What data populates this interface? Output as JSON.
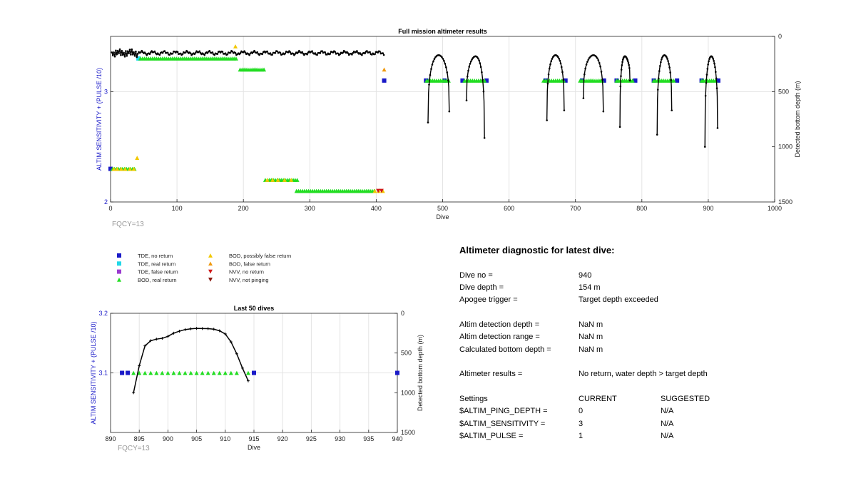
{
  "chart_data": [
    {
      "type": "scatter",
      "title": "Full mission altimeter results",
      "xlabel": "Dive",
      "ylabel_left": "ALTIM SENSITIVITY + (PULSE /10)",
      "ylabel_right": "Detected bottom depth (m)",
      "xlim": [
        0,
        1000
      ],
      "ylim_left": [
        2,
        3.5
      ],
      "ylim_right": [
        1500,
        0
      ],
      "right_axis_reversed": true,
      "xticks": [
        "0",
        "100",
        "200",
        "300",
        "400",
        "500",
        "600",
        "700",
        "800",
        "900",
        "1000"
      ],
      "yticks_left": [
        "2",
        "3"
      ],
      "yticks_right": [
        "0",
        "500",
        "1000",
        "1500"
      ],
      "grid": true,
      "note": "FQCY=13",
      "colors": {
        "tde_no_return": "#1a1ac8",
        "tde_real_return": "#22d8e8",
        "tde_false_return": "#9a3ad0",
        "bod_real_return": "#22dd22",
        "bod_possibly_false": "#f2c800",
        "bod_false_return": "#f09a10",
        "nvv": "#d01818",
        "nvv_not_pinging": "#8a1a10",
        "depth_line": "#000000",
        "axis_label": "#1a1ac8"
      },
      "series": [
        {
          "name": "TDE, no return",
          "marker": "square",
          "color": "#1a1ac8",
          "points": [
            [
              0,
              2.3
            ],
            [
              412,
              3.1
            ],
            [
              475,
              3.1
            ],
            [
              503,
              3.1
            ],
            [
              530,
              3.1
            ],
            [
              566,
              3.1
            ],
            [
              655,
              3.1
            ],
            [
              685,
              3.1
            ],
            [
              710,
              3.1
            ],
            [
              743,
              3.1
            ],
            [
              762,
              3.1
            ],
            [
              790,
              3.1
            ],
            [
              818,
              3.1
            ],
            [
              853,
              3.1
            ],
            [
              890,
              3.1
            ],
            [
              915,
              3.1
            ]
          ]
        },
        {
          "name": "TDE, real return",
          "marker": "square",
          "color": "#22d8e8",
          "points": [
            [
              42,
              3.3
            ]
          ]
        },
        {
          "name": "BOD, real return",
          "marker": "triangle",
          "color": "#22dd22",
          "runs": [
            [
              45,
              190,
              3.3
            ],
            [
              195,
              232,
              3.2
            ],
            [
              3,
              38,
              2.3
            ],
            [
              233,
              282,
              2.2
            ],
            [
              280,
              398,
              2.1
            ],
            [
              476,
              510,
              3.1
            ],
            [
              533,
              565,
              3.1
            ],
            [
              652,
              683,
              3.1
            ],
            [
              707,
              742,
              3.1
            ],
            [
              762,
              786,
              3.1
            ],
            [
              818,
              849,
              3.1
            ],
            [
              890,
              912,
              3.1
            ]
          ]
        },
        {
          "name": "BOD, possibly false return",
          "marker": "triangle",
          "color": "#f2c800",
          "points": [
            [
              5,
              2.3
            ],
            [
              10,
              2.3
            ],
            [
              16,
              2.3
            ],
            [
              22,
              2.3
            ],
            [
              29,
              2.3
            ],
            [
              35,
              2.3
            ],
            [
              40,
              2.4
            ],
            [
              236,
              2.2
            ],
            [
              244,
              2.2
            ],
            [
              252,
              2.2
            ],
            [
              262,
              2.2
            ],
            [
              272,
              2.2
            ],
            [
              398,
              2.1
            ],
            [
              404,
              2.1
            ],
            [
              410,
              2.1
            ],
            [
              188,
              3.41
            ]
          ]
        },
        {
          "name": "BOD, false return",
          "marker": "triangle",
          "color": "#f09a10",
          "points": [
            [
              412,
              3.2
            ]
          ]
        },
        {
          "name": "NVV, no return",
          "marker": "triangle-down",
          "color": "#d01818",
          "points": [
            [
              403,
              2.1
            ],
            [
              408,
              2.1
            ]
          ]
        },
        {
          "name": "Detected bottom depth",
          "axis": "right",
          "color": "#000000",
          "surface": {
            "x_start": 2,
            "x_end": 412,
            "depth_mean": 150,
            "note": "near-constant bottom depth approx 110-180 m"
          },
          "arches": [
            {
              "x_start": 478,
              "x_end": 510,
              "depth_start": 780,
              "depth_end": 680,
              "depth_min": 170
            },
            {
              "x_start": 536,
              "x_end": 563,
              "depth_start": 580,
              "depth_end": 920,
              "depth_min": 180
            },
            {
              "x_start": 657,
              "x_end": 683,
              "depth_start": 760,
              "depth_end": 670,
              "depth_min": 170
            },
            {
              "x_start": 712,
              "x_end": 742,
              "depth_start": 560,
              "depth_end": 680,
              "depth_min": 170
            },
            {
              "x_start": 767,
              "x_end": 782,
              "depth_start": 820,
              "depth_end": 400,
              "depth_min": 180
            },
            {
              "x_start": 823,
              "x_end": 845,
              "depth_start": 890,
              "depth_end": 670,
              "depth_min": 170
            },
            {
              "x_start": 895,
              "x_end": 914,
              "depth_start": 1000,
              "depth_end": 830,
              "depth_min": 180
            }
          ]
        }
      ]
    },
    {
      "type": "scatter",
      "title": "Last 50 dives",
      "xlabel": "Dive",
      "ylabel_left": "ALTIM SENSITIVITY + (PULSE /10)",
      "ylabel_right": "Detected bottom depth (m)",
      "xlim": [
        890,
        940
      ],
      "ylim_left": [
        3.0,
        3.2
      ],
      "ylim_right": [
        1500,
        0
      ],
      "right_axis_reversed": true,
      "xticks": [
        "890",
        "895",
        "900",
        "905",
        "910",
        "915",
        "920",
        "925",
        "930",
        "935",
        "940"
      ],
      "yticks_left": [
        "3.1",
        "3.2"
      ],
      "yticks_right": [
        "0",
        "500",
        "1000",
        "1500"
      ],
      "grid": true,
      "note": "FQCY=13",
      "series": [
        {
          "name": "TDE, no return",
          "marker": "square",
          "color": "#1a1ac8",
          "points": [
            [
              892,
              3.1
            ],
            [
              893,
              3.1
            ],
            [
              915,
              3.1
            ],
            [
              940,
              3.1
            ]
          ]
        },
        {
          "name": "BOD, real return",
          "marker": "triangle",
          "color": "#22dd22",
          "points": [
            [
              894,
              3.1
            ],
            [
              895,
              3.1
            ],
            [
              896,
              3.1
            ],
            [
              897,
              3.1
            ],
            [
              898,
              3.1
            ],
            [
              899,
              3.1
            ],
            [
              900,
              3.1
            ],
            [
              901,
              3.1
            ],
            [
              902,
              3.1
            ],
            [
              903,
              3.1
            ],
            [
              904,
              3.1
            ],
            [
              905,
              3.1
            ],
            [
              906,
              3.1
            ],
            [
              907,
              3.1
            ],
            [
              908,
              3.1
            ],
            [
              909,
              3.1
            ],
            [
              910,
              3.1
            ],
            [
              911,
              3.1
            ],
            [
              912,
              3.1
            ],
            [
              914,
              3.1
            ]
          ]
        },
        {
          "name": "Detected bottom depth",
          "axis": "right",
          "color": "#000000",
          "x": [
            894,
            895,
            896,
            897,
            898,
            899,
            900,
            901,
            902,
            903,
            904,
            905,
            906,
            907,
            908,
            909,
            910,
            911,
            912,
            913,
            914
          ],
          "y": [
            1000,
            660,
            410,
            345,
            325,
            315,
            290,
            250,
            225,
            205,
            195,
            190,
            192,
            193,
            200,
            220,
            260,
            360,
            510,
            690,
            850
          ]
        }
      ]
    }
  ],
  "legend": {
    "col1": [
      {
        "label": "TDE, no return",
        "marker": "square",
        "color": "#1a1ac8"
      },
      {
        "label": "TDE, real return",
        "marker": "square",
        "color": "#22d8e8"
      },
      {
        "label": "TDE, false return",
        "marker": "square",
        "color": "#9a3ad0"
      },
      {
        "label": "BOD, real return",
        "marker": "triangle",
        "color": "#22dd22"
      }
    ],
    "col2": [
      {
        "label": "BOD, possibly false return",
        "marker": "triangle",
        "color": "#f2c800"
      },
      {
        "label": "BOD, false return",
        "marker": "triangle",
        "color": "#f09a10"
      },
      {
        "label": "NVV, no return",
        "marker": "triangle-down",
        "color": "#d01818"
      },
      {
        "label": "NVV, not pinging",
        "marker": "triangle-down",
        "color": "#8a1a10"
      }
    ]
  },
  "diagnostic": {
    "title": "Altimeter diagnostic for latest dive:",
    "rows": [
      {
        "label": "Dive no =",
        "value": "940"
      },
      {
        "label": "Dive depth =",
        "value": "154 m"
      },
      {
        "label": "Apogee trigger =",
        "value": "Target depth exceeded"
      },
      {
        "label": "Altim detection depth =",
        "value": "NaN m"
      },
      {
        "label": "Altim detection range =",
        "value": "NaN m"
      },
      {
        "label": "Calculated bottom depth =",
        "value": "NaN m"
      },
      {
        "label": "Altimeter results =",
        "value": "No return, water depth > target depth"
      }
    ],
    "settings_header": {
      "label": "Settings",
      "current": "CURRENT",
      "suggested": "SUGGESTED"
    },
    "settings": [
      {
        "label": "$ALTIM_PING_DEPTH =",
        "current": "0",
        "suggested": "N/A"
      },
      {
        "label": "$ALTIM_SENSITIVITY =",
        "current": "3",
        "suggested": "N/A"
      },
      {
        "label": "$ALTIM_PULSE =",
        "current": "1",
        "suggested": "N/A"
      }
    ]
  }
}
